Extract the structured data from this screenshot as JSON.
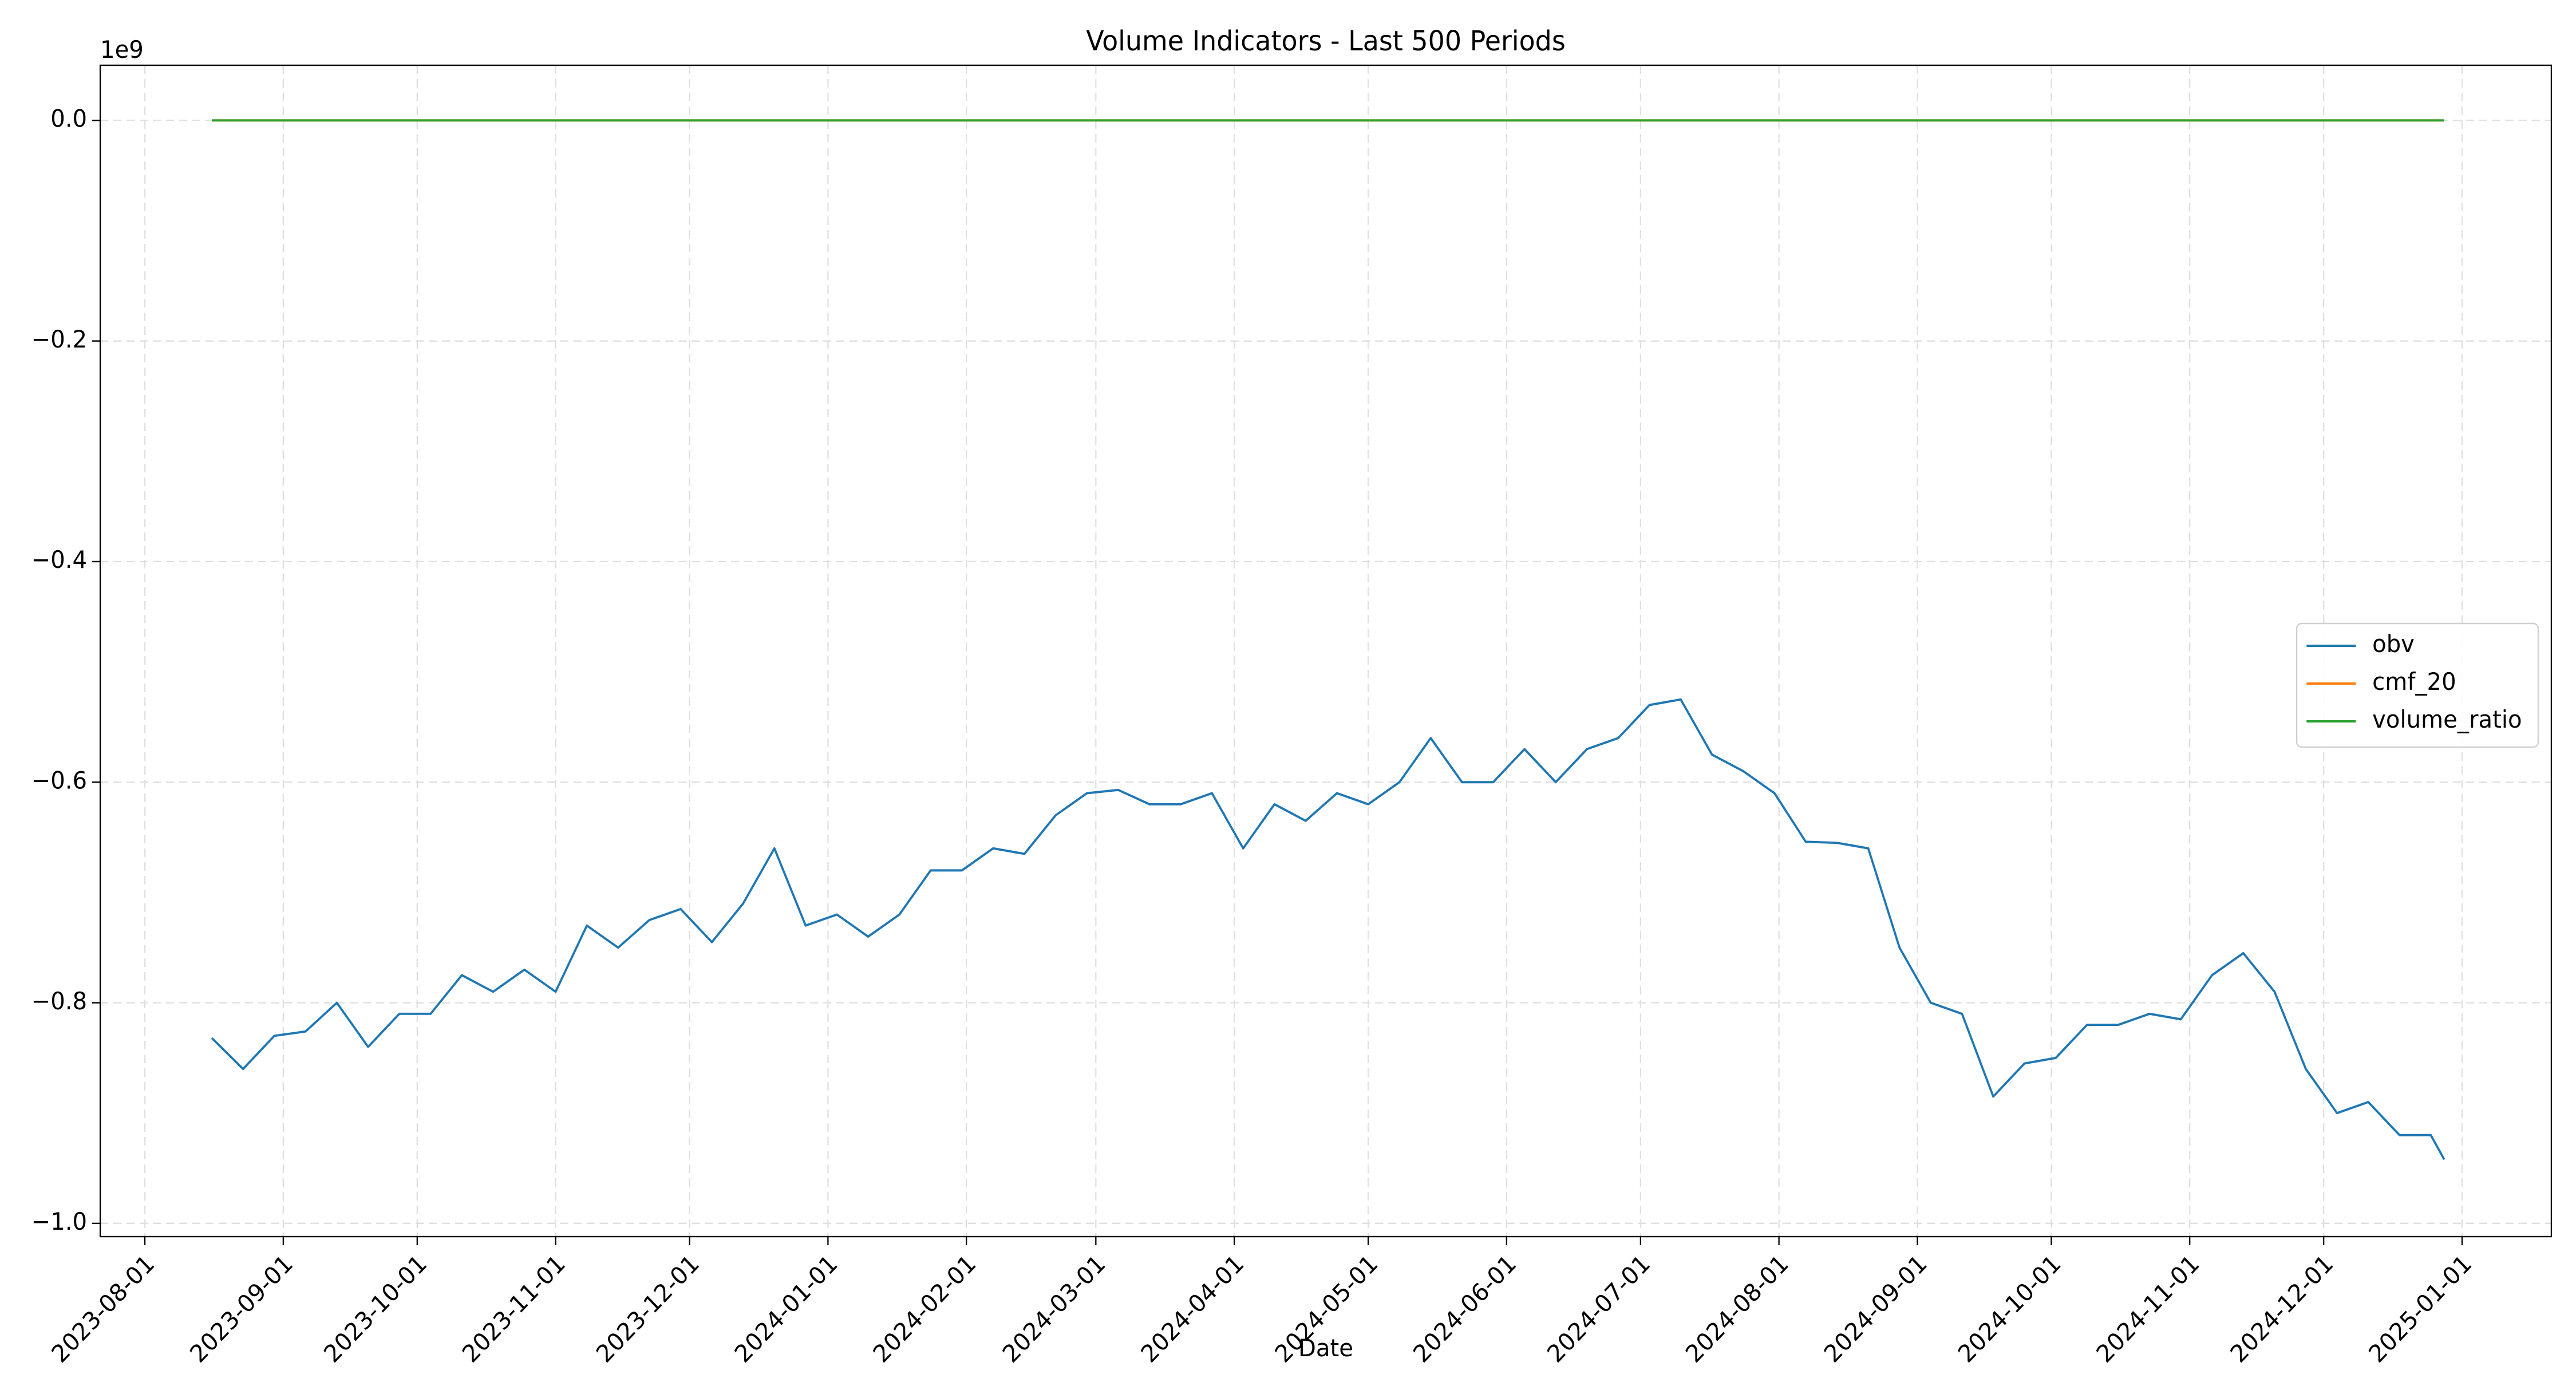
{
  "chart_data": {
    "type": "line",
    "title": "Volume Indicators - Last 500 Periods",
    "x_label": "Date",
    "y_offset_label": "1e9",
    "x": [
      "2023-08-16",
      "2023-08-23",
      "2023-08-30",
      "2023-09-06",
      "2023-09-13",
      "2023-09-20",
      "2023-09-27",
      "2023-10-04",
      "2023-10-11",
      "2023-10-18",
      "2023-10-25",
      "2023-11-01",
      "2023-11-08",
      "2023-11-15",
      "2023-11-22",
      "2023-11-29",
      "2023-12-06",
      "2023-12-13",
      "2023-12-20",
      "2023-12-27",
      "2024-01-03",
      "2024-01-10",
      "2024-01-17",
      "2024-01-24",
      "2024-01-31",
      "2024-02-07",
      "2024-02-14",
      "2024-02-21",
      "2024-02-28",
      "2024-03-06",
      "2024-03-13",
      "2024-03-20",
      "2024-03-27",
      "2024-04-03",
      "2024-04-10",
      "2024-04-17",
      "2024-04-24",
      "2024-05-01",
      "2024-05-08",
      "2024-05-15",
      "2024-05-22",
      "2024-05-29",
      "2024-06-05",
      "2024-06-12",
      "2024-06-19",
      "2024-06-26",
      "2024-07-03",
      "2024-07-10",
      "2024-07-17",
      "2024-07-24",
      "2024-07-31",
      "2024-08-07",
      "2024-08-14",
      "2024-08-21",
      "2024-08-28",
      "2024-09-04",
      "2024-09-11",
      "2024-09-18",
      "2024-09-25",
      "2024-10-02",
      "2024-10-09",
      "2024-10-16",
      "2024-10-23",
      "2024-10-30",
      "2024-11-06",
      "2024-11-13",
      "2024-11-20",
      "2024-11-27",
      "2024-12-04",
      "2024-12-11",
      "2024-12-18",
      "2024-12-25",
      "2024-12-28"
    ],
    "series": [
      {
        "name": "obv",
        "color": "#1f77b4",
        "values": [
          -0.832,
          -0.86,
          -0.83,
          -0.826,
          -0.8,
          -0.84,
          -0.81,
          -0.81,
          -0.775,
          -0.79,
          -0.77,
          -0.79,
          -0.73,
          -0.75,
          -0.725,
          -0.715,
          -0.745,
          -0.71,
          -0.66,
          -0.73,
          -0.72,
          -0.74,
          -0.72,
          -0.68,
          -0.68,
          -0.66,
          -0.665,
          -0.63,
          -0.61,
          -0.607,
          -0.62,
          -0.62,
          -0.61,
          -0.66,
          -0.62,
          -0.635,
          -0.61,
          -0.62,
          -0.6,
          -0.56,
          -0.6,
          -0.6,
          -0.57,
          -0.6,
          -0.57,
          -0.56,
          -0.53,
          -0.525,
          -0.575,
          -0.59,
          -0.61,
          -0.654,
          -0.655,
          -0.66,
          -0.75,
          -0.8,
          -0.81,
          -0.885,
          -0.855,
          -0.85,
          -0.82,
          -0.82,
          -0.81,
          -0.815,
          -0.775,
          -0.755,
          -0.79,
          -0.86,
          -0.9,
          -0.89,
          -0.92,
          -0.92,
          -0.942
        ]
      },
      {
        "name": "cmf_20",
        "color": "#ff7f0e",
        "values": [
          0,
          0,
          0,
          0,
          0,
          0,
          0,
          0,
          0,
          0,
          0,
          0,
          0,
          0,
          0,
          0,
          0,
          0,
          0,
          0,
          0,
          0,
          0,
          0,
          0,
          0,
          0,
          0,
          0,
          0,
          0,
          0,
          0,
          0,
          0,
          0,
          0,
          0,
          0,
          0,
          0,
          0,
          0,
          0,
          0,
          0,
          0,
          0,
          0,
          0,
          0,
          0,
          0,
          0,
          0,
          0,
          0,
          0,
          0,
          0,
          0,
          0,
          0,
          0,
          0,
          0,
          0,
          0,
          0,
          0,
          0,
          0,
          0
        ]
      },
      {
        "name": "volume_ratio",
        "color": "#2ca02c",
        "values": [
          0,
          0,
          0,
          0,
          0,
          0,
          0,
          0,
          0,
          0,
          0,
          0,
          0,
          0,
          0,
          0,
          0,
          0,
          0,
          0,
          0,
          0,
          0,
          0,
          0,
          0,
          0,
          0,
          0,
          0,
          0,
          0,
          0,
          0,
          0,
          0,
          0,
          0,
          0,
          0,
          0,
          0,
          0,
          0,
          0,
          0,
          0,
          0,
          0,
          0,
          0,
          0,
          0,
          0,
          0,
          0,
          0,
          0,
          0,
          0,
          0,
          0,
          0,
          0,
          0,
          0,
          0,
          0,
          0,
          0,
          0,
          0,
          0
        ]
      }
    ],
    "xlim": [
      "2023-07-22",
      "2025-01-21"
    ],
    "xticks": [
      "2023-08-01",
      "2023-09-01",
      "2023-10-01",
      "2023-11-01",
      "2023-12-01",
      "2024-01-01",
      "2024-02-01",
      "2024-03-01",
      "2024-04-01",
      "2024-05-01",
      "2024-06-01",
      "2024-07-01",
      "2024-08-01",
      "2024-09-01",
      "2024-10-01",
      "2024-11-01",
      "2024-12-01",
      "2025-01-01"
    ],
    "ylim": [
      -1.012,
      0.05
    ],
    "yticks": [
      {
        "value": 0,
        "label": "0.0"
      },
      {
        "value": -0.2,
        "label": "−0.2"
      },
      {
        "value": -0.4,
        "label": "−0.4"
      },
      {
        "value": -0.6,
        "label": "−0.6"
      },
      {
        "value": -0.8,
        "label": "−0.8"
      },
      {
        "value": -1.0,
        "label": "−1.0"
      }
    ],
    "grid": true,
    "legend": "center right"
  }
}
